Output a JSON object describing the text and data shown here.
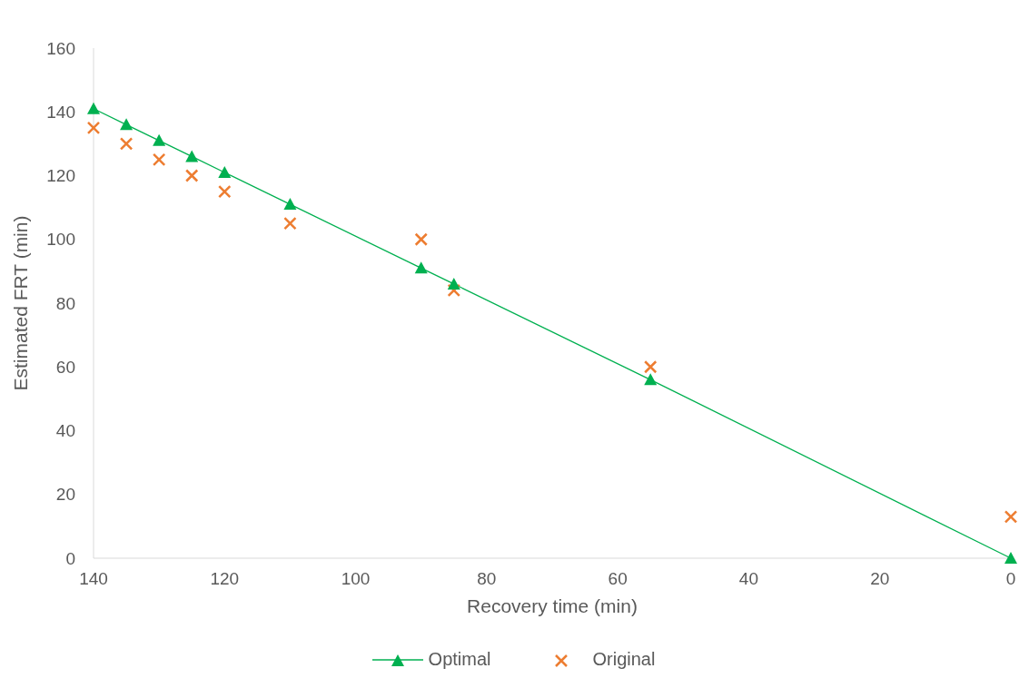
{
  "chart_data": {
    "type": "scatter",
    "xlabel": "Recovery time (min)",
    "ylabel": "Estimated FRT (min)",
    "xlim": [
      140,
      0
    ],
    "xticks": [
      140,
      120,
      100,
      80,
      60,
      40,
      20,
      0
    ],
    "ylim": [
      0,
      160
    ],
    "yticks": [
      0,
      20,
      40,
      60,
      80,
      100,
      120,
      140,
      160
    ],
    "grid": false,
    "legend": "bottom",
    "series": [
      {
        "name": "Optimal",
        "type": "line",
        "color": "#00b050",
        "marker": "triangle",
        "line_style": "solid",
        "x": [
          140,
          135,
          130,
          125,
          120,
          110,
          90,
          85,
          55,
          0
        ],
        "values": [
          141,
          136,
          131,
          126,
          121,
          111,
          91,
          86,
          56,
          0
        ]
      },
      {
        "name": "Original",
        "color": "#ed7d31",
        "marker": "cross",
        "x": [
          140,
          135,
          130,
          125,
          120,
          110,
          90,
          85,
          55,
          0
        ],
        "values": [
          135,
          130,
          125,
          120,
          115,
          105,
          100,
          84,
          60,
          13
        ]
      }
    ]
  }
}
